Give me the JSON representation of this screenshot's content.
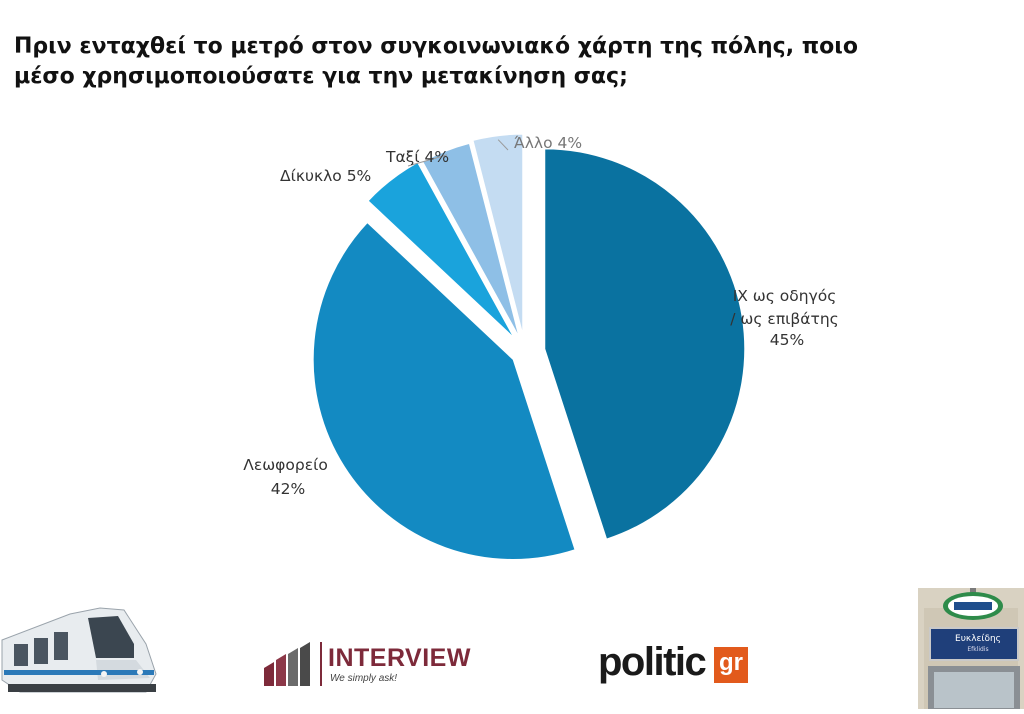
{
  "title": "Πριν ενταχθεί το μετρό στον συγκοινωνιακό χάρτη της πόλης, ποιο μέσο χρησιμοποιούσατε για την μετακίνηση σας;",
  "chart_data": {
    "type": "pie",
    "title": "Πριν ενταχθεί το μετρό στον συγκοινωνιακό χάρτη της πόλης, ποιο μέσο χρησιμοποιούσατε για την μετακίνηση σας;",
    "slices": [
      {
        "label": "ΙΧ ως οδηγός / ως επιβάτης",
        "value": 45,
        "display": "45%",
        "color": "#0a72a0"
      },
      {
        "label": "Λεωφορείο",
        "value": 42,
        "display": "42%",
        "color": "#138ac2"
      },
      {
        "label": "Δίκυκλο",
        "value": 5,
        "display": "5%",
        "color": "#1aa3dc"
      },
      {
        "label": "Ταξί",
        "value": 4,
        "display": "4%",
        "color": "#8ebfe6"
      },
      {
        "label": "Άλλο",
        "value": 4,
        "display": "4%",
        "color": "#c4dcf2"
      }
    ],
    "legend": "none",
    "start": "12 o'clock, clockwise",
    "exploded": true
  },
  "logos": {
    "interview_name": "INTERVIEW",
    "interview_tagline": "We simply ask!",
    "politic_word": "politic",
    "politic_suffix": "gr"
  },
  "station_sign": {
    "name": "Ευκλείδης",
    "sub": "Efklidis"
  }
}
